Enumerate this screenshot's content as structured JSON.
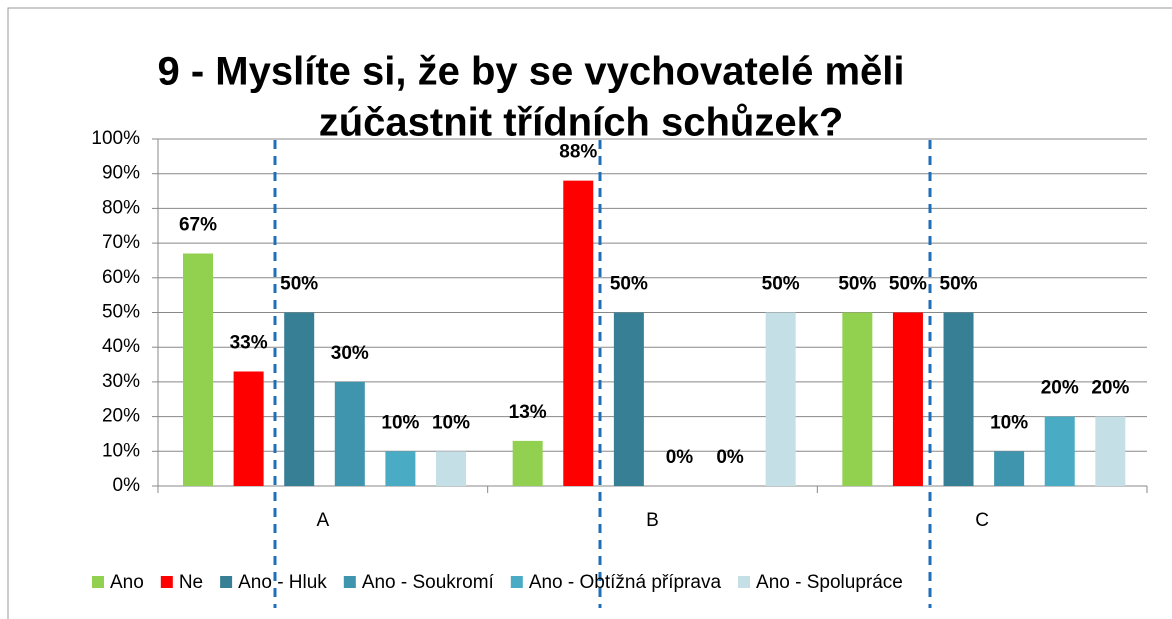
{
  "chart_data": {
    "type": "bar",
    "title": [
      "9 - Myslíte si, že by se vychovatelé měli",
      "zúčastnit třídních schůzek?"
    ],
    "categories": [
      "A",
      "B",
      "C"
    ],
    "series": [
      {
        "name": "Ano",
        "color": "#92d050",
        "values": [
          67,
          13,
          50
        ],
        "value_labels": [
          "67%",
          "13%",
          "50%"
        ]
      },
      {
        "name": "Ne",
        "color": "#ff0000",
        "values": [
          33,
          88,
          50
        ],
        "value_labels": [
          "33%",
          "88%",
          "50%"
        ]
      },
      {
        "name": "Ano - Hluk",
        "color": "#367f95",
        "values": [
          50,
          50,
          50
        ],
        "value_labels": [
          "50%",
          "50%",
          "50%"
        ]
      },
      {
        "name": "Ano - Soukromí",
        "color": "#3f94ae",
        "values": [
          30,
          0,
          10
        ],
        "value_labels": [
          "30%",
          "0%",
          "10%"
        ]
      },
      {
        "name": "Ano - Obtížná příprava",
        "color": "#4aabc5",
        "values": [
          10,
          0,
          20
        ],
        "value_labels": [
          "10%",
          "0%",
          "20%"
        ]
      },
      {
        "name": "Ano - Spolupráce",
        "color": "#c5dfe6",
        "values": [
          10,
          50,
          20
        ],
        "value_labels": [
          "10%",
          "50%",
          "20%"
        ]
      }
    ],
    "ylim": [
      0,
      100
    ],
    "yticks": [
      {
        "value": 0,
        "label": "0%"
      },
      {
        "value": 10,
        "label": "10%"
      },
      {
        "value": 20,
        "label": "20%"
      },
      {
        "value": 30,
        "label": "30%"
      },
      {
        "value": 40,
        "label": "40%"
      },
      {
        "value": 50,
        "label": "50%"
      },
      {
        "value": 60,
        "label": "60%"
      },
      {
        "value": 70,
        "label": "70%"
      },
      {
        "value": 80,
        "label": "80%"
      },
      {
        "value": 90,
        "label": "90%"
      },
      {
        "value": 100,
        "label": "100%"
      }
    ],
    "grid": true,
    "legend": "bottom"
  }
}
